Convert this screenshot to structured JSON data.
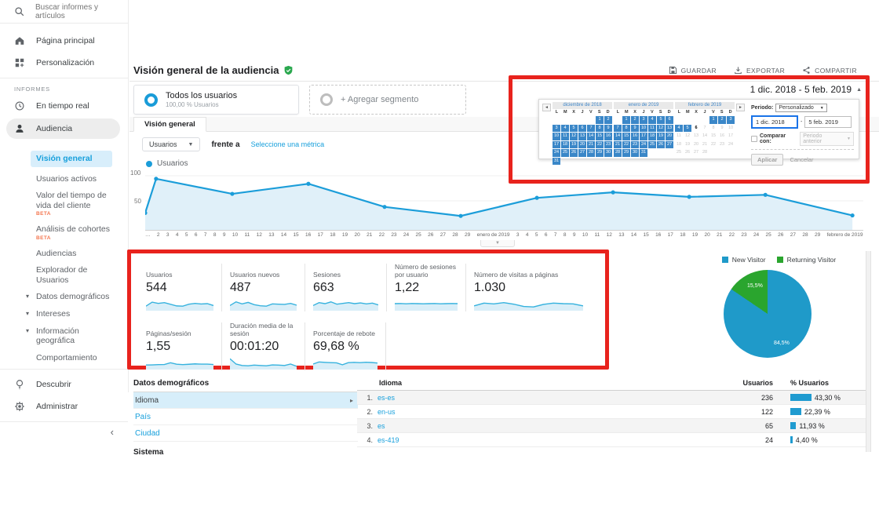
{
  "colors": {
    "accent_blue": "#1a9cd8",
    "chart_line": "#1b9dd9",
    "chart_area": "#e0f0f9",
    "spark_line": "#36b2de",
    "spark_area": "#d9eef8",
    "pie_blue": "#1f9ac9",
    "pie_green": "#2aa52e",
    "calendar_selected": "#3a87c8",
    "annotation_red": "#e8231d",
    "bar_blue": "#1f9bd0",
    "beta_orange": "#f4764f"
  },
  "header": {
    "title": "Visión general de la audiencia",
    "actions": [
      {
        "label": "GUARDAR",
        "icon": "save-icon"
      },
      {
        "label": "EXPORTAR",
        "icon": "export-icon"
      },
      {
        "label": "COMPARTIR",
        "icon": "share-icon"
      }
    ]
  },
  "sidebar": {
    "search_placeholder": "Buscar informes y artículos",
    "top_items": [
      {
        "label": "Página principal",
        "icon": "home-icon"
      },
      {
        "label": "Personalización",
        "icon": "personalization-icon"
      }
    ],
    "section_label": "INFORMES",
    "realtime_label": "En tiempo real",
    "audiencia_label": "Audiencia",
    "audiencia_children": [
      {
        "label": "Visión general",
        "active": true
      },
      {
        "label": "Usuarios activos"
      },
      {
        "label": "Valor del tiempo de vida del cliente",
        "beta": true
      },
      {
        "label": "Análisis de cohortes",
        "beta": true
      },
      {
        "label": "Audiencias"
      },
      {
        "label": "Explorador de Usuarios"
      },
      {
        "label": "Datos demográficos",
        "caret": true
      },
      {
        "label": "Intereses",
        "caret": true
      },
      {
        "label": "Información geográfica",
        "caret": true
      },
      {
        "label": "Comportamiento",
        "caret": true,
        "truncated": true
      }
    ],
    "footer_items": [
      {
        "label": "Descubrir",
        "icon": "lightbulb-icon"
      },
      {
        "label": "Administrar",
        "icon": "gear-icon"
      }
    ],
    "collapse_icon": "‹"
  },
  "segments": {
    "all_users_title": "Todos los usuarios",
    "all_users_subtitle": "100,00 % Usuarios",
    "add_segment_label": "+ Agregar segmento"
  },
  "tab_label": "Visión general",
  "selector": {
    "metric": "Usuarios",
    "versus_label": "frente a",
    "choose_metric_label": "Seleccione una métrica"
  },
  "chart_data": [
    {
      "type": "line",
      "title": "Usuarios",
      "legend": [
        "Usuarios"
      ],
      "ylim": [
        0,
        100
      ],
      "yticks": [
        "100",
        "50"
      ],
      "xmax": 66,
      "x_day_offsets": [
        0,
        1,
        8,
        15,
        22,
        29,
        36,
        43,
        50,
        57,
        65
      ],
      "x_point_dates": [
        "1 dic.",
        "2 dic.",
        "9 dic.",
        "16 dic.",
        "23 dic.",
        "30 dic.",
        "6 ene.",
        "13 ene.",
        "20 ene.",
        "27 ene.",
        "4 feb."
      ],
      "values": [
        26,
        94,
        64,
        84,
        38,
        20,
        56,
        67,
        58,
        62,
        21
      ],
      "x_axis_labels": [
        "…",
        "2",
        "3",
        "4",
        "5",
        "6",
        "7",
        "8",
        "9",
        "10",
        "11",
        "12",
        "13",
        "14",
        "15",
        "16",
        "17",
        "18",
        "19",
        "20",
        "21",
        "22",
        "23",
        "24",
        "25",
        "26",
        "27",
        "28",
        "29",
        "enero de 2019",
        "3",
        "4",
        "5",
        "6",
        "7",
        "8",
        "9",
        "10",
        "11",
        "12",
        "13",
        "14",
        "15",
        "16",
        "17",
        "18",
        "19",
        "20",
        "21",
        "22",
        "23",
        "24",
        "25",
        "26",
        "27",
        "28",
        "29",
        "febrero de 2019"
      ]
    },
    {
      "type": "pie",
      "legend": [
        {
          "label": "New Visitor",
          "color": "#1f9ac9"
        },
        {
          "label": "Returning Visitor",
          "color": "#2aa52e"
        }
      ],
      "values": [
        84.5,
        15.5
      ],
      "slice_labels": [
        "84,5%",
        "15,5%"
      ]
    }
  ],
  "date_panel": {
    "range_display": "1 dic. 2018 - 5 feb. 2019",
    "collapse_icon": "▲",
    "dow": [
      "L",
      "M",
      "X",
      "J",
      "V",
      "S",
      "D"
    ],
    "months": [
      {
        "title": "diciembre de 2018",
        "weeks": [
          [
            "",
            "",
            "",
            "",
            "",
            "1s",
            "2s"
          ],
          [
            "3s",
            "4s",
            "5s",
            "6s",
            "7s",
            "8s",
            "9s"
          ],
          [
            "10s",
            "11s",
            "12s",
            "13s",
            "14s",
            "15s",
            "16s"
          ],
          [
            "17s",
            "18s",
            "19s",
            "20s",
            "21s",
            "22s",
            "23s"
          ],
          [
            "24s",
            "25s",
            "26s",
            "27s",
            "28s",
            "29s",
            "30s"
          ],
          [
            "31s",
            "",
            "",
            "",
            "",
            "",
            ""
          ]
        ]
      },
      {
        "title": "enero de 2019",
        "weeks": [
          [
            "",
            "1s",
            "2s",
            "3s",
            "4s",
            "5s",
            "6s"
          ],
          [
            "7s",
            "8s",
            "9s",
            "10s",
            "11s",
            "12s",
            "13s"
          ],
          [
            "14s",
            "15s",
            "16s",
            "17s",
            "18s",
            "19s",
            "20s"
          ],
          [
            "21s",
            "22s",
            "23s",
            "24s",
            "25s",
            "26s",
            "27s"
          ],
          [
            "28s",
            "29s",
            "30s",
            "31s",
            "",
            "",
            ""
          ]
        ]
      },
      {
        "title": "febrero de 2019",
        "weeks": [
          [
            "",
            "",
            "",
            "",
            "1s",
            "2s",
            "3s"
          ],
          [
            "4s",
            "5s",
            "6t",
            "7d",
            "8d",
            "9d",
            "10d"
          ],
          [
            "11d",
            "12d",
            "13d",
            "14d",
            "15d",
            "16d",
            "17d"
          ],
          [
            "18d",
            "19d",
            "20d",
            "21d",
            "22d",
            "23d",
            "24d"
          ],
          [
            "25d",
            "26d",
            "27d",
            "28d",
            "",
            "",
            ""
          ]
        ]
      }
    ],
    "periodo_label": "Periodo:",
    "periodo_value": "Personalizado",
    "start_date": "1 dic. 2018",
    "end_date": "5 feb. 2019",
    "compare_label": "Comparar con:",
    "compare_value": "Periodo anterior",
    "apply_label": "Aplicar",
    "cancel_label": "Cancelar"
  },
  "cards": [
    {
      "label": "Usuarios",
      "value": "544",
      "spark": [
        30,
        62,
        52,
        58,
        45,
        32,
        30,
        46,
        52,
        47,
        50,
        35
      ]
    },
    {
      "label": "Usuarios nuevos",
      "value": "487",
      "spark": [
        35,
        64,
        48,
        60,
        42,
        33,
        30,
        48,
        46,
        44,
        52,
        38
      ]
    },
    {
      "label": "Sesiones",
      "value": "663",
      "spark": [
        35,
        58,
        50,
        64,
        46,
        52,
        58,
        50,
        56,
        48,
        54,
        40
      ]
    },
    {
      "label": "Número de sesiones por usuario",
      "value": "1,22",
      "spark": [
        50,
        51,
        49,
        51,
        50,
        49,
        50,
        51,
        49,
        50,
        51,
        50
      ]
    },
    {
      "label": "Número de visitas a páginas",
      "value": "1.030",
      "spark": [
        32,
        54,
        48,
        58,
        46,
        28,
        24,
        44,
        54,
        50,
        48,
        32
      ]
    },
    {
      "label": "Páginas/sesión",
      "value": "1,55",
      "spark": [
        30,
        31,
        33,
        34,
        48,
        36,
        33,
        36,
        39,
        37,
        37,
        34
      ]
    },
    {
      "label": "Duración media de la sesión",
      "value": "00:01:20",
      "spark": [
        80,
        38,
        26,
        24,
        29,
        26,
        24,
        31,
        29,
        26,
        38,
        20
      ]
    },
    {
      "label": "Porcentaje de rebote",
      "value": "69,68 %",
      "spark": [
        38,
        54,
        51,
        49,
        47,
        32,
        49,
        51,
        49,
        52,
        50,
        46
      ]
    }
  ],
  "demographics": {
    "left_header": "Datos demográficos",
    "left_items": [
      {
        "label": "Idioma",
        "active": true
      },
      {
        "label": "País"
      },
      {
        "label": "Ciudad"
      }
    ],
    "next_header": "Sistema",
    "table": {
      "headers": [
        "Idioma",
        "Usuarios",
        "% Usuarios"
      ],
      "rows": [
        {
          "rank": "1.",
          "language": "es-es",
          "users": "236",
          "pct": "43,30 %",
          "pct_value": 43.3
        },
        {
          "rank": "2.",
          "language": "en-us",
          "users": "122",
          "pct": "22,39 %",
          "pct_value": 22.39
        },
        {
          "rank": "3.",
          "language": "es",
          "users": "65",
          "pct": "11,93 %",
          "pct_value": 11.93
        },
        {
          "rank": "4.",
          "language": "es-419",
          "users": "24",
          "pct": "4,40 %",
          "pct_value": 4.4
        }
      ]
    }
  }
}
